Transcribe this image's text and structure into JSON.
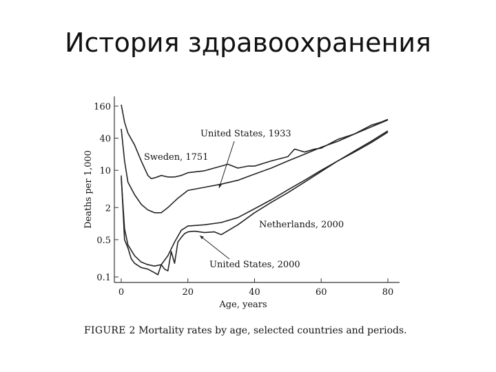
{
  "slide": {
    "title": "История здравоохранения"
  },
  "caption": {
    "lead": "FIGURE 2",
    "text": "Mortality rates by age, selected countries and periods."
  },
  "chart_data": {
    "type": "line",
    "title": "",
    "xlabel": "Age, years",
    "ylabel": "Deaths per 1,000",
    "xlim": [
      0,
      82
    ],
    "ylim": [
      0.09,
      200
    ],
    "yscale": "log",
    "xticks": [
      0,
      20,
      40,
      60,
      80
    ],
    "yticks": [
      160,
      40,
      10,
      2,
      0.5,
      0.1
    ],
    "ytick_labels": [
      "160",
      "40",
      "10",
      "2",
      "0.5",
      "0.1"
    ],
    "grid": false,
    "legend": "none",
    "line_color": "#222222",
    "series": [
      {
        "name": "Sweden, 1751",
        "x": [
          0,
          1,
          2,
          4,
          6,
          8,
          9,
          10,
          12,
          14,
          16,
          18,
          20,
          25,
          30,
          32,
          35,
          38,
          40,
          45,
          50,
          52,
          55,
          58,
          60,
          65,
          70,
          75,
          78,
          80
        ],
        "y": [
          170,
          80,
          50,
          30,
          15,
          8,
          7,
          7.2,
          8,
          7.5,
          7.5,
          8,
          9,
          9.8,
          12,
          13,
          11,
          12,
          12,
          15,
          18,
          25,
          22,
          25,
          26,
          38,
          48,
          70,
          80,
          90
        ]
      },
      {
        "name": "United States, 1933",
        "x": [
          0,
          1,
          2,
          4,
          6,
          8,
          10,
          12,
          14,
          17,
          20,
          25,
          30,
          35,
          40,
          45,
          50,
          55,
          60,
          65,
          70,
          75,
          80
        ],
        "y": [
          60,
          15,
          6,
          3.5,
          2.3,
          1.8,
          1.6,
          1.6,
          2,
          3,
          4.2,
          4.8,
          5.5,
          6.5,
          8.5,
          11,
          15,
          20,
          27,
          35,
          48,
          65,
          88
        ]
      },
      {
        "name": "Netherlands, 2000",
        "x": [
          0,
          1,
          2,
          4,
          6,
          8,
          10,
          12,
          14,
          16,
          18,
          20,
          25,
          30,
          35,
          40,
          45,
          50,
          55,
          60,
          65,
          70,
          75,
          80
        ],
        "y": [
          7,
          0.8,
          0.4,
          0.25,
          0.19,
          0.17,
          0.16,
          0.17,
          0.25,
          0.45,
          0.75,
          0.9,
          0.95,
          1.05,
          1.3,
          1.9,
          2.8,
          4.3,
          6.5,
          10,
          15,
          23,
          35,
          55
        ]
      },
      {
        "name": "United States, 2000",
        "x": [
          0,
          1,
          2,
          3,
          4,
          6,
          8,
          10,
          11,
          12,
          13,
          14,
          15,
          16,
          17,
          18,
          19,
          20,
          22,
          25,
          28,
          30,
          35,
          40,
          45,
          50,
          55,
          60,
          65,
          70,
          75,
          80
        ],
        "y": [
          8,
          0.5,
          0.35,
          0.22,
          0.18,
          0.15,
          0.14,
          0.12,
          0.11,
          0.17,
          0.14,
          0.13,
          0.3,
          0.18,
          0.45,
          0.55,
          0.65,
          0.7,
          0.72,
          0.68,
          0.7,
          0.62,
          0.95,
          1.6,
          2.5,
          3.8,
          6,
          9.5,
          15,
          22,
          33,
          52
        ]
      }
    ],
    "annotations": [
      {
        "text": "Sweden, 1751",
        "series": "Sweden, 1751"
      },
      {
        "text": "United States, 1933",
        "series": "United States, 1933"
      },
      {
        "text": "Netherlands, 2000",
        "series": "Netherlands, 2000"
      },
      {
        "text": "United States, 2000",
        "series": "United States, 2000"
      }
    ]
  }
}
